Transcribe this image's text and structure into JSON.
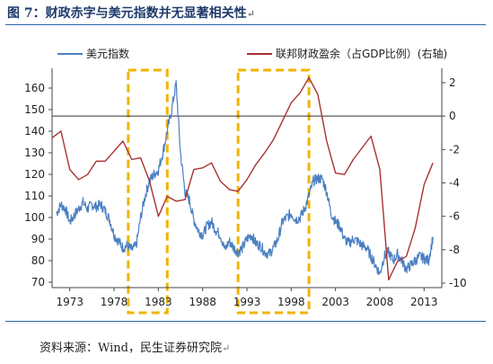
{
  "title": "图 7：财政赤字与美元指数并无显著相关性",
  "source": "资料来源：Wind，民生证券研究院",
  "colors": {
    "usd": "#4a7fc1",
    "deficit": "#a83232",
    "highlight": "#f0b400",
    "rule": "#2b66a8"
  },
  "chart_data": {
    "type": "line",
    "x_ticks": [
      "1973",
      "1978",
      "1983",
      "1988",
      "1993",
      "1998",
      "2003",
      "2008",
      "2013"
    ],
    "xlim": [
      1971,
      2015
    ],
    "ylim_left": [
      70,
      165
    ],
    "yticks_left": [
      "160",
      "150",
      "140",
      "130",
      "120",
      "110",
      "100",
      "90",
      "80",
      "70"
    ],
    "ylim_right": [
      -10,
      2.8
    ],
    "yticks_right": [
      "2",
      "0",
      "-2",
      "-4",
      "-6",
      "-8",
      "-10"
    ],
    "reference_line_right": 0,
    "legend": "top",
    "highlight_regions": [
      [
        1979.6,
        1984.0
      ],
      [
        1992.0,
        2000.0
      ]
    ],
    "series": [
      {
        "name": "美元指数",
        "axis": "left",
        "x": [
          1971.5,
          1972.0,
          1972.5,
          1973.0,
          1973.5,
          1974.0,
          1974.5,
          1975.0,
          1975.5,
          1976.0,
          1976.5,
          1977.0,
          1977.5,
          1978.0,
          1978.5,
          1979.0,
          1979.5,
          1980.0,
          1980.5,
          1981.0,
          1981.5,
          1982.0,
          1982.5,
          1983.0,
          1983.5,
          1984.0,
          1984.5,
          1985.0,
          1985.5,
          1986.0,
          1986.5,
          1987.0,
          1987.5,
          1988.0,
          1988.5,
          1989.0,
          1989.5,
          1990.0,
          1990.5,
          1991.0,
          1991.5,
          1992.0,
          1992.5,
          1993.0,
          1993.5,
          1994.0,
          1994.5,
          1995.0,
          1995.5,
          1996.0,
          1996.5,
          1997.0,
          1997.5,
          1998.0,
          1998.5,
          1999.0,
          1999.5,
          2000.0,
          2000.5,
          2001.0,
          2001.5,
          2002.0,
          2002.5,
          2003.0,
          2003.5,
          2004.0,
          2004.5,
          2005.0,
          2005.5,
          2006.0,
          2006.5,
          2007.0,
          2007.5,
          2008.0,
          2008.5,
          2009.0,
          2009.5,
          2010.0,
          2010.5,
          2011.0,
          2011.5,
          2012.0,
          2012.5,
          2013.0,
          2013.5,
          2014.0
        ],
        "values": [
          102,
          106,
          104,
          98,
          101,
          104,
          107,
          104,
          106,
          105,
          106,
          103,
          99,
          92,
          89,
          86,
          87,
          85,
          87,
          100,
          110,
          117,
          120,
          122,
          130,
          140,
          150,
          162,
          130,
          112,
          108,
          99,
          94,
          92,
          96,
          98,
          94,
          92,
          85,
          89,
          86,
          84,
          86,
          90,
          92,
          88,
          87,
          84,
          83,
          86,
          90,
          98,
          100,
          102,
          99,
          100,
          104,
          110,
          117,
          118,
          118,
          112,
          102,
          98,
          96,
          90,
          88,
          90,
          89,
          87,
          86,
          82,
          78,
          74,
          82,
          84,
          80,
          83,
          80,
          76,
          78,
          80,
          82,
          81,
          80,
          91
        ]
      },
      {
        "name": "联邦财政盈余（占GDP比例）(右轴)",
        "axis": "right",
        "x": [
          1971,
          1972,
          1973,
          1974,
          1975,
          1976,
          1977,
          1978,
          1979,
          1980,
          1981,
          1982,
          1983,
          1984,
          1985,
          1986,
          1987,
          1988,
          1989,
          1990,
          1991,
          1992,
          1993,
          1994,
          1995,
          1996,
          1997,
          1998,
          1999,
          2000,
          2001,
          2002,
          2003,
          2004,
          2005,
          2006,
          2007,
          2008,
          2009,
          2010,
          2011,
          2012,
          2013,
          2014
        ],
        "values": [
          -1.3,
          -0.9,
          -3.2,
          -3.8,
          -3.5,
          -2.7,
          -2.7,
          -2.1,
          -1.5,
          -2.6,
          -2.5,
          -3.9,
          -6.0,
          -4.8,
          -5.1,
          -5.0,
          -3.2,
          -3.1,
          -2.8,
          -3.9,
          -4.4,
          -4.5,
          -3.8,
          -2.9,
          -2.2,
          -1.4,
          -0.3,
          0.8,
          1.4,
          2.3,
          1.3,
          -1.5,
          -3.4,
          -3.5,
          -2.6,
          -1.9,
          -1.2,
          -3.2,
          -9.8,
          -8.7,
          -8.4,
          -6.7,
          -4.1,
          -2.8
        ]
      }
    ]
  }
}
